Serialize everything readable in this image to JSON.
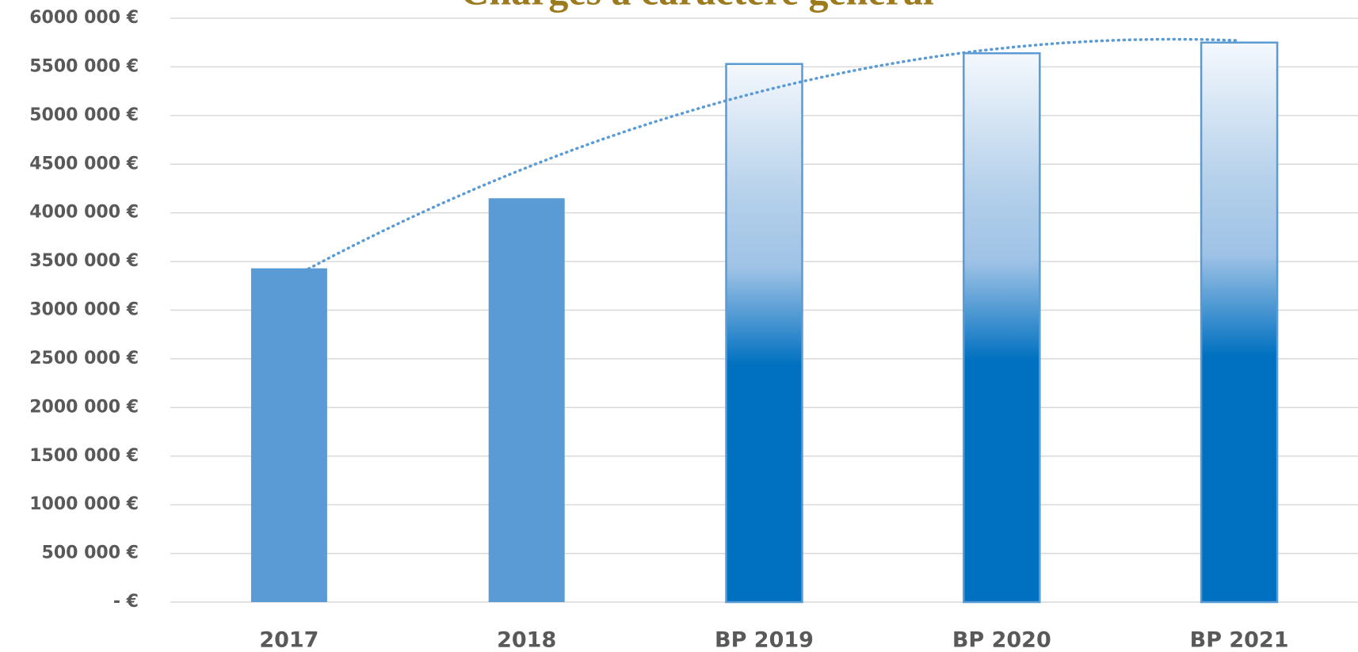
{
  "chart_data": {
    "type": "bar",
    "title": "Charges à caractère général",
    "categories": [
      "2017",
      "2018",
      "BP 2019",
      "BP 2020",
      "BP 2021"
    ],
    "values": [
      3430000,
      4150000,
      5530000,
      5640000,
      5750000
    ],
    "color": "#5b9bd5",
    "bar_styles": [
      "solid",
      "solid",
      "gradient",
      "gradient",
      "gradient"
    ],
    "trendline": "polynomial",
    "ylim": [
      0,
      6000000
    ],
    "yticks": [
      {
        "value": 0,
        "label": "-   €"
      },
      {
        "value": 500000,
        "label": "500 000 €"
      },
      {
        "value": 1000000,
        "label": "1000 000 €"
      },
      {
        "value": 1500000,
        "label": "1500 000 €"
      },
      {
        "value": 2000000,
        "label": "2000 000 €"
      },
      {
        "value": 2500000,
        "label": "2500 000 €"
      },
      {
        "value": 3000000,
        "label": "3000 000 €"
      },
      {
        "value": 3500000,
        "label": "3500 000 €"
      },
      {
        "value": 4000000,
        "label": "4000 000 €"
      },
      {
        "value": 4500000,
        "label": "4500 000 €"
      },
      {
        "value": 5000000,
        "label": "5000 000 €"
      },
      {
        "value": 5500000,
        "label": "5500 000 €"
      },
      {
        "value": 6000000,
        "label": "6000 000 €"
      }
    ],
    "grid": true
  }
}
